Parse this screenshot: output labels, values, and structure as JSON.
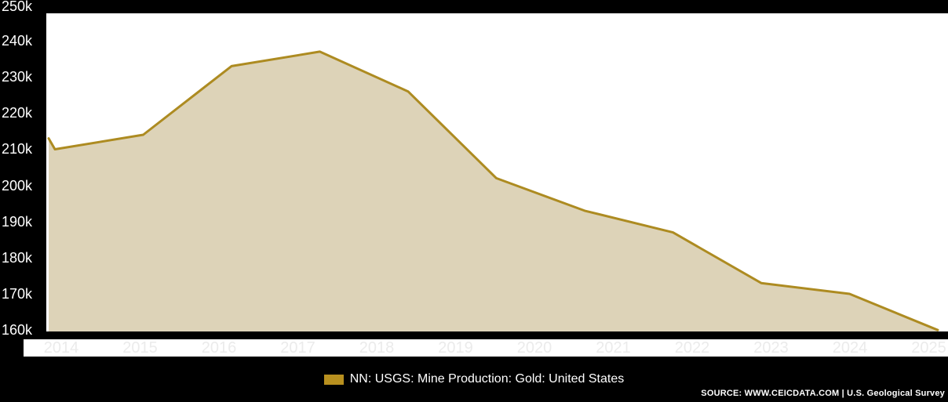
{
  "legend": {
    "label": "NN: USGS: Mine Production: Gold: United States"
  },
  "footer": {
    "source": "SOURCE: WWW.CEICDATA.COM | U.S. Geological Survey"
  },
  "chart_data": {
    "type": "area",
    "title": "",
    "series": [
      {
        "name": "NN: USGS: Mine Production: Gold: United States",
        "x": [
          2014,
          2015,
          2016,
          2017,
          2018,
          2019,
          2020,
          2021,
          2022,
          2023,
          2024
        ],
        "values": [
          210000,
          214000,
          233000,
          237000,
          226000,
          202000,
          193000,
          187000,
          173000,
          170000,
          160000
        ]
      }
    ],
    "edge_start_value": 213000,
    "x_tick_labels": [
      "2014",
      "2015",
      "2016",
      "2017",
      "2018",
      "2019",
      "2020",
      "2021",
      "2022",
      "2023",
      "2024",
      "2025"
    ],
    "y_tick_labels": [
      "250k",
      "240k",
      "230k",
      "220k",
      "210k",
      "200k",
      "190k",
      "180k",
      "170k",
      "160k"
    ],
    "y_tick_values": [
      250000,
      240000,
      230000,
      220000,
      210000,
      200000,
      190000,
      180000,
      170000,
      160000
    ],
    "ylim": [
      160000,
      250000
    ],
    "grid": false,
    "legend_position": "bottom",
    "colors": {
      "line": "#ad8b21",
      "fill": "#ddd3b8",
      "swatch": "#b8901f",
      "background": "#000000",
      "plot_background": "#ffffff",
      "x_tick_color": "#ebebeb",
      "y_tick_color": "#ffffff"
    }
  }
}
